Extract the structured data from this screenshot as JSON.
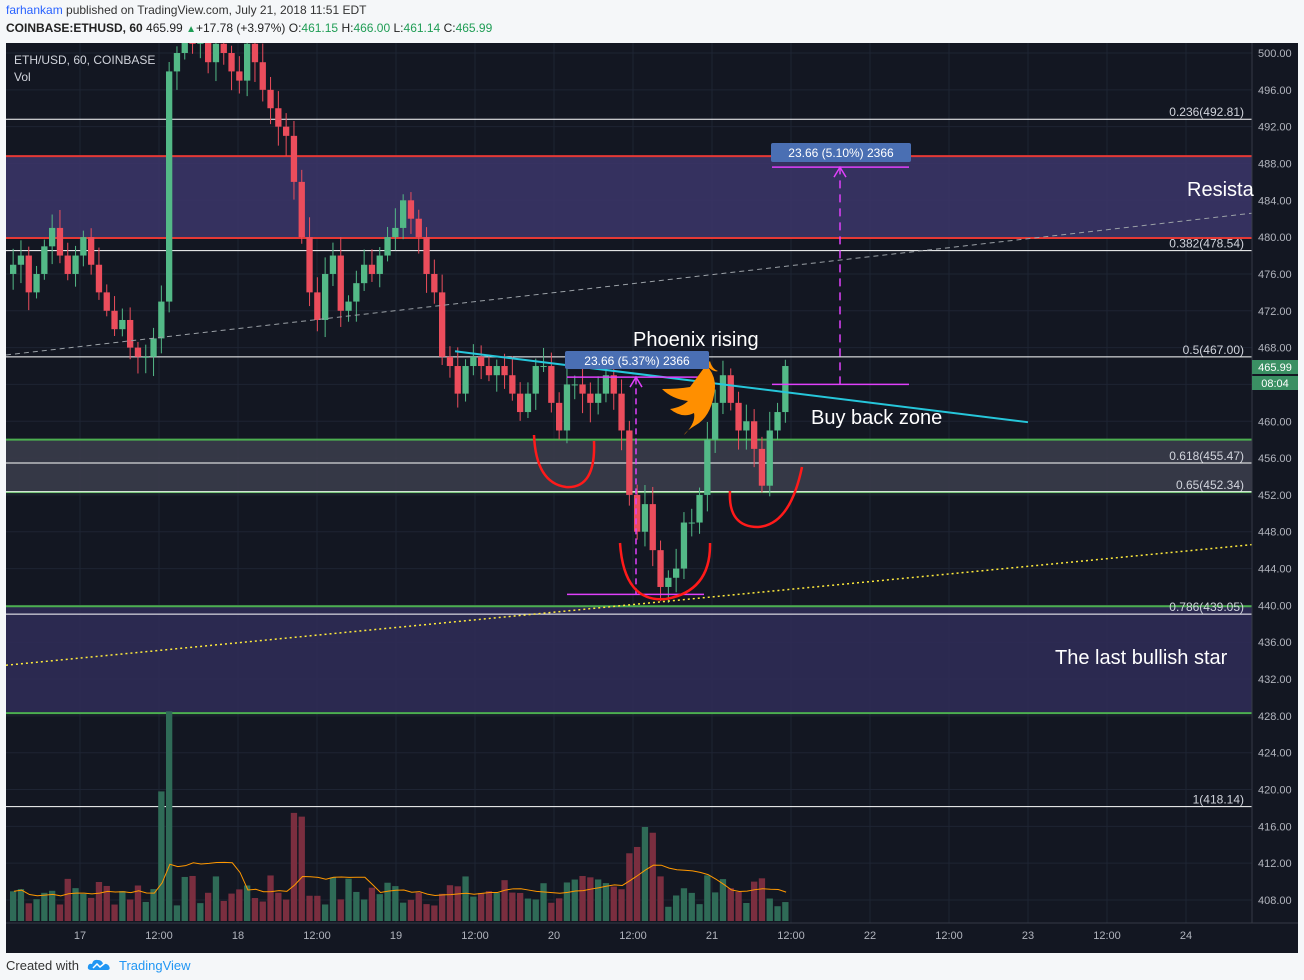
{
  "header": {
    "author": "farhankam",
    "published_text": " published on TradingView.com, July 21, 2018 11:51 EDT",
    "symbol": "COINBASE:ETHUSD, 60",
    "last": "465.99",
    "change_arrow": "▲",
    "change": "+17.78 (+3.97%)",
    "o_label": "O:",
    "o": "461.15",
    "h_label": "H:",
    "h": "466.00",
    "l_label": "L:",
    "l": "461.14",
    "c_label": "C:",
    "c": "465.99"
  },
  "legend": {
    "main": "ETH/USD, 60, COINBASE",
    "vol": "Vol"
  },
  "footer": {
    "created_with": "Created with",
    "brand": "TradingView",
    "logo_icon": "tradingview-cloud-icon"
  },
  "colors": {
    "background": "#131722",
    "up": "#53b987",
    "down": "#eb4d5c",
    "zone": "#2e2a4f",
    "fib_line": "#ffffff",
    "resistance_line": "#e53935",
    "support_line": "#4caf50",
    "measure": "#e040fb",
    "trendline": "#26c6da",
    "dotted_trend": "#ffeb3b",
    "volume_ma": "#ff9800",
    "phoenix": "#ff8f00",
    "handdrawn": "#ff1a1a",
    "price_badge": "#3a8f63"
  },
  "chart_data": {
    "type": "candlestick",
    "symbol": "ETH/USD",
    "interval": "60",
    "exchange": "COINBASE",
    "ylim": [
      404.0,
      502.0
    ],
    "y_ticks": [
      "500.00",
      "496.00",
      "492.00",
      "488.00",
      "484.00",
      "480.00",
      "476.00",
      "472.00",
      "468.00",
      "464.00",
      "460.00",
      "456.00",
      "452.00",
      "448.00",
      "444.00",
      "440.00",
      "436.00",
      "432.00",
      "428.00",
      "424.00",
      "420.00",
      "416.00",
      "412.00",
      "408.00"
    ],
    "x_ticks": [
      "17",
      "12:00",
      "18",
      "12:00",
      "19",
      "12:00",
      "20",
      "12:00",
      "21",
      "12:00",
      "22",
      "12:00",
      "23",
      "12:00",
      "24"
    ],
    "last_price": "465.99",
    "last_countdown": "08:04",
    "fib_levels": [
      {
        "label": "0.236(492.81)",
        "value": 492.81
      },
      {
        "label": "0.382(478.54)",
        "value": 478.54
      },
      {
        "label": "0.5(467.00)",
        "value": 467.0
      },
      {
        "label": "0.618(455.47)",
        "value": 455.47
      },
      {
        "label": "0.65(452.34)",
        "value": 452.34
      },
      {
        "label": "0.786(439.05)",
        "value": 439.05
      },
      {
        "label": "1(418.14)",
        "value": 418.14
      }
    ],
    "zones": [
      {
        "type": "resistance",
        "from": 479.9,
        "to": 488.8,
        "label": "Resista"
      },
      {
        "type": "support",
        "from": 452.3,
        "to": 458.0
      },
      {
        "type": "support",
        "from": 428.3,
        "to": 439.9,
        "label": "The last bullish star"
      }
    ],
    "measures": [
      {
        "label": "23.66 (5.37%) 2366"
      },
      {
        "label": "23.66 (5.10%) 2366"
      }
    ],
    "annotations": [
      "Phoenix rising",
      "Buy back zone"
    ],
    "candles_hourly_close": [
      477,
      478,
      474,
      476,
      479,
      481,
      478,
      476,
      478,
      480,
      477,
      474,
      472,
      470,
      471,
      468,
      467,
      467,
      469,
      473,
      498,
      500,
      503,
      501,
      502,
      499,
      501,
      500,
      498,
      497,
      501,
      499,
      496,
      494,
      492,
      491,
      486,
      480,
      474,
      471,
      476,
      478,
      472,
      473,
      475,
      477,
      476,
      478,
      480,
      481,
      484,
      482,
      480,
      476,
      474,
      467,
      466,
      463,
      466,
      467,
      466,
      465,
      466,
      465,
      463,
      461,
      463,
      466,
      466,
      462,
      459,
      464,
      464,
      463,
      462,
      463,
      465,
      463,
      459,
      452,
      448,
      451,
      446,
      442,
      443,
      444,
      449,
      449,
      452,
      458,
      462,
      465,
      462,
      459,
      460,
      457,
      453,
      459,
      461,
      466
    ],
    "volume_note": "Volume histogram in lower pane with moving average"
  }
}
